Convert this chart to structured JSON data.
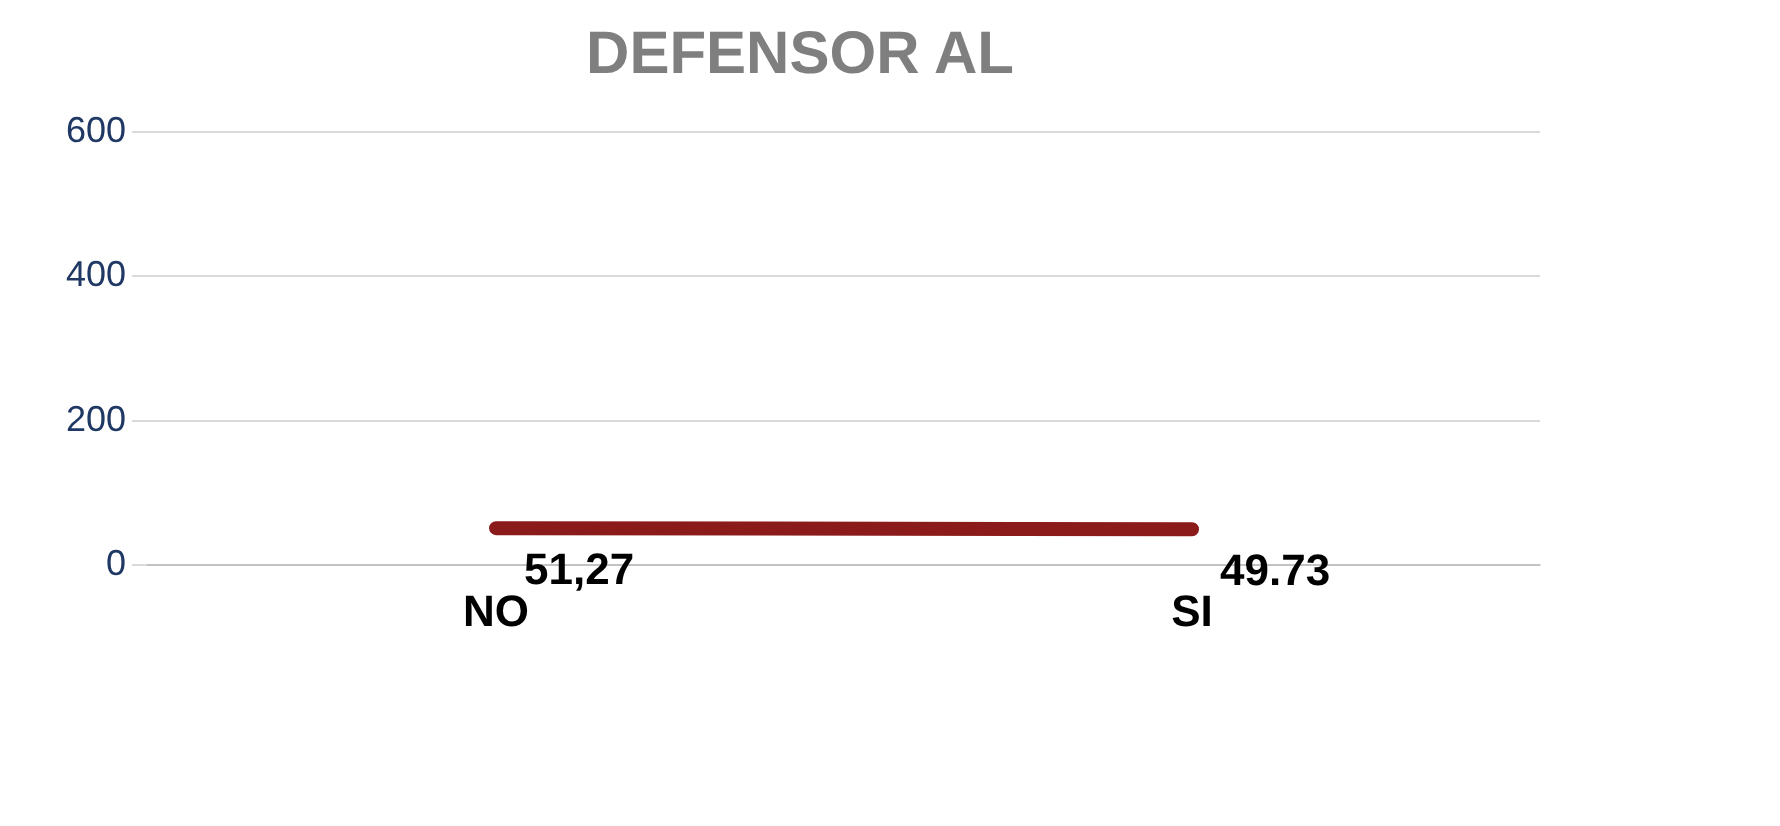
{
  "chart_data": {
    "type": "line",
    "title": "DEFENSOR AL",
    "categories": [
      "NO",
      "SI"
    ],
    "series": [
      {
        "color": "#8b1a1a",
        "values": [
          51.27,
          49.73
        ],
        "value_labels": [
          "51,27",
          "49.73"
        ]
      }
    ],
    "ylim": [
      0,
      600
    ],
    "yticks": [
      0,
      200,
      400,
      600
    ],
    "grid": "y",
    "legend": false,
    "marker": "none"
  }
}
